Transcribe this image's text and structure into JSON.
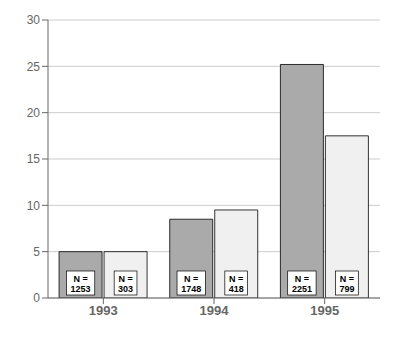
{
  "chart_data": {
    "type": "bar",
    "categories": [
      "1993",
      "1994",
      "1995"
    ],
    "series": [
      {
        "color": "#aaaaaa",
        "values": [
          5.0,
          8.5,
          25.2
        ],
        "annotations": [
          "N =\n1253",
          "N =\n1748",
          "N =\n2251"
        ]
      },
      {
        "color": "#f0f0f0",
        "values": [
          5.0,
          9.5,
          17.5
        ],
        "annotations": [
          "N =\n303",
          "N =\n418",
          "N =\n799"
        ]
      }
    ],
    "ylim": [
      0,
      30
    ],
    "yticks": [
      0,
      5,
      10,
      15,
      20,
      25,
      30
    ],
    "grid": true
  }
}
